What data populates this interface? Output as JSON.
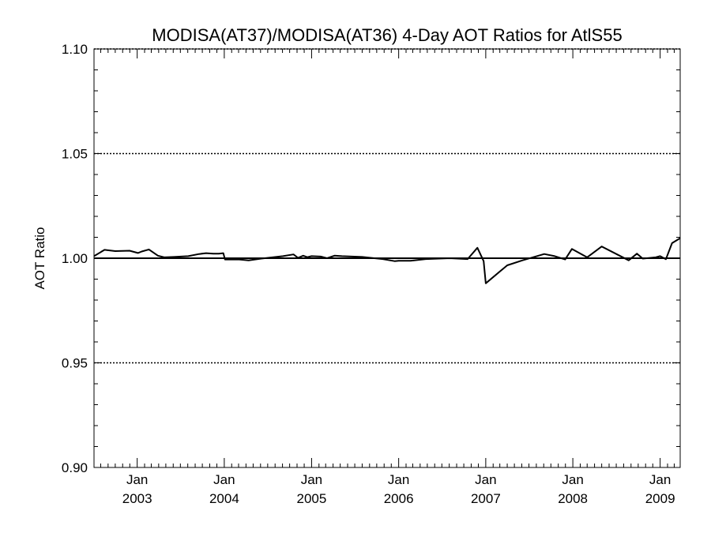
{
  "chart_data": {
    "type": "line",
    "title": "MODISA(AT37)/MODISA(AT36) 4-Day AOT Ratios for AtlS55",
    "ylabel": "AOT Ratio",
    "xlabel": "",
    "ylim": [
      0.9,
      1.1
    ],
    "xlim": [
      "2002-07-04",
      "2009-03-26"
    ],
    "yticks": [
      {
        "value": 0.9,
        "label": "0.90"
      },
      {
        "value": 0.95,
        "label": "0.95"
      },
      {
        "value": 1.0,
        "label": "1.00"
      },
      {
        "value": 1.05,
        "label": "1.05"
      },
      {
        "value": 1.1,
        "label": "1.10"
      }
    ],
    "xticks": [
      {
        "date": "2003-01-01",
        "month": "Jan",
        "year": "2003"
      },
      {
        "date": "2004-01-01",
        "month": "Jan",
        "year": "2004"
      },
      {
        "date": "2005-01-01",
        "month": "Jan",
        "year": "2005"
      },
      {
        "date": "2006-01-01",
        "month": "Jan",
        "year": "2006"
      },
      {
        "date": "2007-01-01",
        "month": "Jan",
        "year": "2007"
      },
      {
        "date": "2008-01-01",
        "month": "Jan",
        "year": "2008"
      },
      {
        "date": "2009-01-01",
        "month": "Jan",
        "year": "2009"
      }
    ],
    "gridlines_y": [
      0.95,
      1.05,
      1.1
    ],
    "reference_line": 1.0,
    "grid": true,
    "series": [
      {
        "name": "",
        "color": "#000000",
        "x": [
          "2002-07-04",
          "2002-08-17",
          "2002-10-01",
          "2002-11-30",
          "2003-01-04",
          "2003-01-20",
          "2003-02-19",
          "2003-03-29",
          "2003-04-24",
          "2003-06-04",
          "2003-08-03",
          "2003-09-17",
          "2003-10-17",
          "2003-11-16",
          "2003-12-09",
          "2003-12-28",
          "2004-01-04",
          "2004-03-04",
          "2004-04-12",
          "2004-06-04",
          "2004-09-03",
          "2004-10-17",
          "2004-11-05",
          "2004-11-27",
          "2004-12-14",
          "2005-01-01",
          "2005-02-08",
          "2005-03-07",
          "2005-04-07",
          "2005-05-08",
          "2005-08-01",
          "2005-10-27",
          "2005-12-15",
          "2006-01-01",
          "2006-02-20",
          "2006-04-24",
          "2006-08-03",
          "2006-10-17",
          "2006-11-27",
          "2006-12-23",
          "2007-01-01",
          "2007-04-01",
          "2007-06-04",
          "2007-09-03",
          "2007-10-17",
          "2007-11-30",
          "2007-12-28",
          "2008-03-01",
          "2008-05-01",
          "2008-08-22",
          "2008-09-26",
          "2008-10-20",
          "2008-12-14",
          "2009-01-01",
          "2009-01-25",
          "2009-02-20",
          "2009-03-26"
        ],
        "y": [
          1.001,
          1.004,
          1.0034,
          1.0036,
          1.0025,
          1.0032,
          1.0042,
          1.0012,
          1.0004,
          1.0006,
          1.001,
          1.002,
          1.0024,
          1.0022,
          1.0022,
          1.0024,
          0.9994,
          0.9994,
          0.999,
          0.9998,
          1.001,
          1.0018,
          1.0002,
          1.0012,
          1.0005,
          1.001,
          1.0008,
          1.0,
          1.0012,
          1.001,
          1.0006,
          0.9996,
          0.9986,
          0.9988,
          0.9988,
          0.9996,
          1.0,
          0.9996,
          1.005,
          0.9986,
          0.988,
          0.9966,
          0.999,
          1.002,
          1.001,
          0.9994,
          1.0044,
          1.0004,
          1.0056,
          0.999,
          1.0022,
          0.9998,
          1.0004,
          1.001,
          0.9995,
          1.0072,
          1.0096
        ]
      }
    ]
  }
}
